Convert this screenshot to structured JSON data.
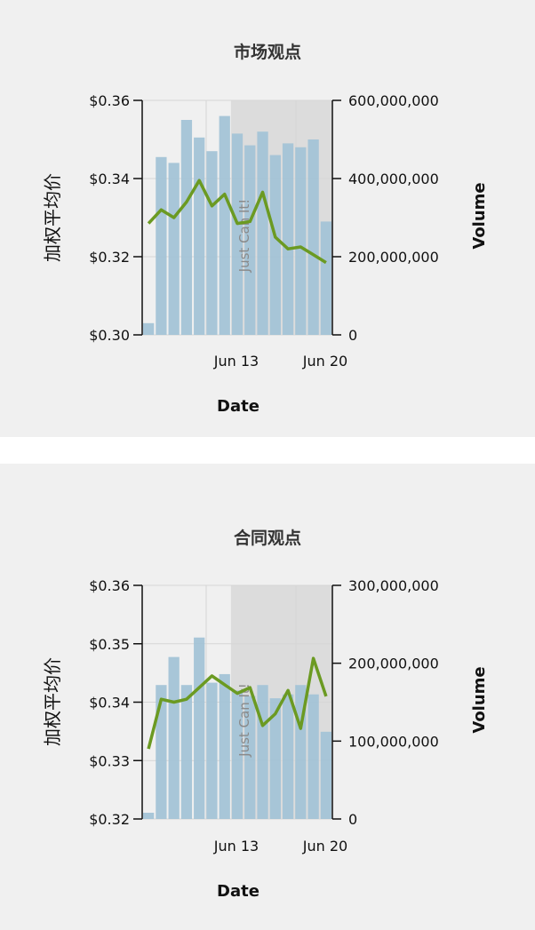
{
  "chart_data": [
    {
      "type": "bar+line",
      "title": "市场观点",
      "xlabel": "Date",
      "ylabel": "加权平均价",
      "y2label": "Volume",
      "x_tick_labels": [
        "Jun 13",
        "Jun 20"
      ],
      "y_ticks": [
        "$0.36",
        "$0.34",
        "$0.32",
        "$0.30"
      ],
      "y2_ticks": [
        "600,000,000",
        "400,000,000",
        "200,000,000",
        "0"
      ],
      "ylim": [
        0.3,
        0.36
      ],
      "y2lim": [
        0,
        600000000
      ],
      "annotation": "Just Can It!",
      "shaded_from_index": 7,
      "volume": [
        30000000,
        455000000,
        440000000,
        550000000,
        505000000,
        470000000,
        560000000,
        515000000,
        485000000,
        520000000,
        460000000,
        490000000,
        480000000,
        500000000,
        290000000
      ],
      "price": [
        0.3285,
        0.332,
        0.33,
        0.334,
        0.3395,
        0.333,
        0.336,
        0.3285,
        0.329,
        0.3365,
        0.325,
        0.322,
        0.3225,
        0.3205,
        0.3185
      ],
      "colors": {
        "bar": "#a3c3d6",
        "line": "#6b9a22",
        "shade": "#dcdcdc"
      }
    },
    {
      "type": "bar+line",
      "title": "合同观点",
      "xlabel": "Date",
      "ylabel": "加权平均价",
      "y2label": "Volume",
      "x_tick_labels": [
        "Jun 13",
        "Jun 20"
      ],
      "y_ticks": [
        "$0.36",
        "$0.35",
        "$0.34",
        "$0.33",
        "$0.32"
      ],
      "y2_ticks": [
        "300,000,000",
        "200,000,000",
        "100,000,000",
        "0"
      ],
      "ylim": [
        0.32,
        0.36
      ],
      "y2lim": [
        0,
        300000000
      ],
      "annotation": "Just Can It!",
      "shaded_from_index": 7,
      "volume": [
        8000000,
        172000000,
        208000000,
        172000000,
        233000000,
        175000000,
        186000000,
        165000000,
        158000000,
        172000000,
        155000000,
        160000000,
        172000000,
        160000000,
        112000000
      ],
      "price": [
        0.332,
        0.3405,
        0.34,
        0.3405,
        0.3425,
        0.3445,
        0.343,
        0.3415,
        0.3425,
        0.336,
        0.338,
        0.342,
        0.3355,
        0.3475,
        0.341
      ],
      "colors": {
        "bar": "#a3c3d6",
        "line": "#6b9a22",
        "shade": "#dcdcdc"
      }
    }
  ]
}
